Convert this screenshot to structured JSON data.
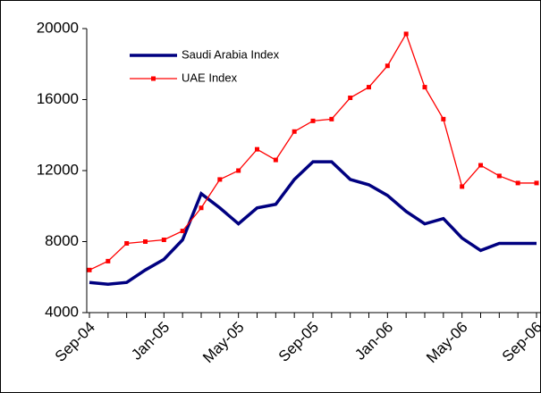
{
  "chart_data": {
    "type": "line",
    "categories": [
      "Sep-04",
      null,
      null,
      null,
      "Jan-05",
      null,
      null,
      null,
      "May-05",
      null,
      null,
      null,
      "Sep-05",
      null,
      null,
      null,
      "Jan-06",
      null,
      null,
      null,
      "May-06",
      null,
      null,
      null,
      "Sep-06"
    ],
    "series": [
      {
        "name": "Saudi Arabia Index",
        "color": "#000080",
        "values": [
          5700,
          5600,
          5700,
          6400,
          7000,
          8100,
          10700,
          9900,
          9000,
          9900,
          10100,
          11500,
          12500,
          12500,
          11500,
          11200,
          10600,
          9700,
          9000,
          9300,
          8200,
          7500,
          7900,
          7900,
          7900
        ]
      },
      {
        "name": "UAE Index",
        "color": "#ff0000",
        "values": [
          6400,
          6900,
          7900,
          8000,
          8100,
          8600,
          9900,
          11500,
          12000,
          13200,
          12600,
          14200,
          14800,
          14900,
          16100,
          16700,
          17900,
          19700,
          16700,
          14900,
          11100,
          12300,
          11700,
          11300,
          11300
        ]
      }
    ],
    "ylim": [
      4000,
      20000
    ],
    "yticks": [
      4000,
      8000,
      12000,
      16000,
      20000
    ]
  }
}
